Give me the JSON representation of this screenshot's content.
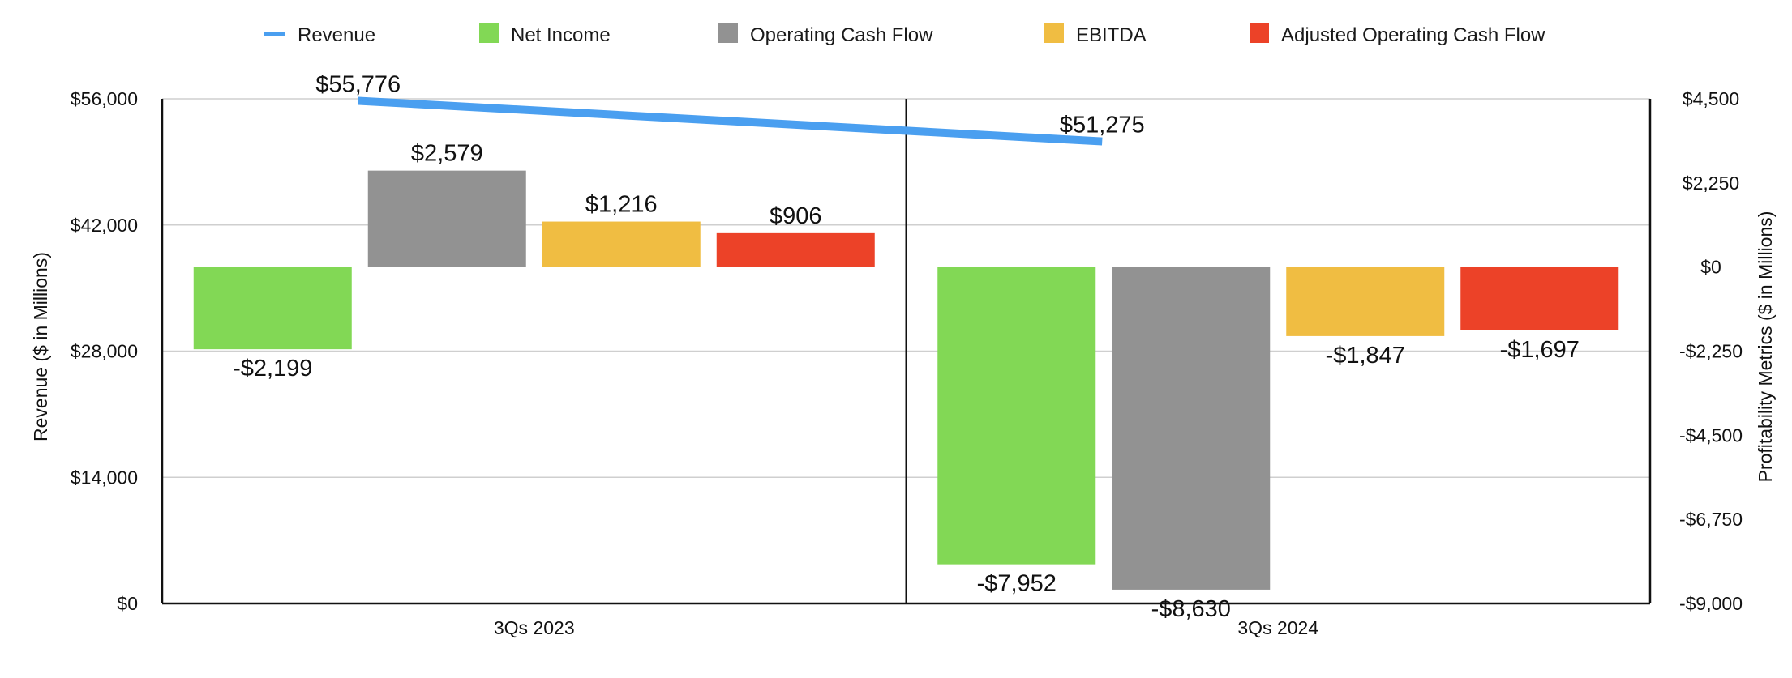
{
  "chart_data": {
    "type": "bar",
    "title": "",
    "categories": [
      "3Qs 2023",
      "3Qs 2024"
    ],
    "line_series": {
      "name": "Revenue",
      "values": [
        55776,
        51275
      ],
      "labels": [
        "$55,776",
        "$51,275"
      ],
      "color": "#4a9ff0",
      "axis": "left"
    },
    "series": [
      {
        "name": "Net Income",
        "values": [
          -2199,
          -7952
        ],
        "labels": [
          "-$2,199",
          "-$7,952"
        ],
        "color": "#82d855",
        "axis": "right"
      },
      {
        "name": "Operating Cash Flow",
        "values": [
          2579,
          -8630
        ],
        "labels": [
          "$2,579",
          "-$8,630"
        ],
        "color": "#929292",
        "axis": "right"
      },
      {
        "name": "EBITDA",
        "values": [
          1216,
          -1847
        ],
        "labels": [
          "$1,216",
          "-$1,847"
        ],
        "color": "#f0bd42",
        "axis": "right"
      },
      {
        "name": "Adjusted Operating Cash Flow",
        "values": [
          906,
          -1697
        ],
        "labels": [
          "$906",
          "-$1,697"
        ],
        "color": "#ec4228",
        "axis": "right"
      }
    ],
    "y_left": {
      "label": "Revenue ($ in Millions)",
      "ylim": [
        0,
        56000
      ],
      "ticks": [
        0,
        14000,
        28000,
        42000,
        56000
      ],
      "tick_labels": [
        "$0",
        "$14,000",
        "$28,000",
        "$42,000",
        "$56,000"
      ]
    },
    "y_right": {
      "label": "Profitability Metrics ($ in Millions)",
      "ylim": [
        -9000,
        4500
      ],
      "ticks": [
        -9000,
        -6750,
        -4500,
        -2250,
        0,
        2250,
        4500
      ],
      "tick_labels": [
        "-$9,000",
        "-$6,750",
        "-$4,500",
        "-$2,250",
        "$0",
        "$2,250",
        "$4,500"
      ]
    },
    "legend": {
      "position": "top",
      "items": [
        {
          "name": "Revenue",
          "color": "#4a9ff0",
          "marker": "line"
        },
        {
          "name": "Net Income",
          "color": "#82d855",
          "marker": "square"
        },
        {
          "name": "Operating Cash Flow",
          "color": "#929292",
          "marker": "square"
        },
        {
          "name": "EBITDA",
          "color": "#f0bd42",
          "marker": "square"
        },
        {
          "name": "Adjusted Operating Cash Flow",
          "color": "#ec4228",
          "marker": "square"
        }
      ]
    },
    "grid": true
  }
}
